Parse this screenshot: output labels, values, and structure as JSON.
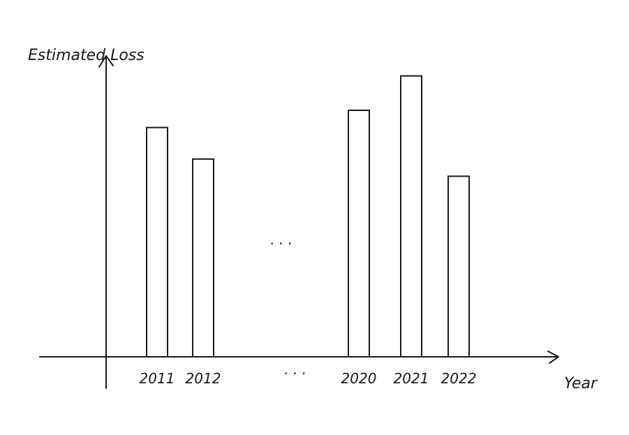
{
  "chart_data": {
    "type": "bar",
    "title": "",
    "ylabel": "Estimated Loss",
    "xlabel": "Year",
    "categories": [
      "2011",
      "2012",
      "2020",
      "2021",
      "2022"
    ],
    "values": [
      0.8,
      0.69,
      0.86,
      0.98,
      0.63
    ],
    "ylim": [
      0,
      1.05
    ],
    "gap_marker": "· · ·",
    "grid": false,
    "legend": "none",
    "colors": {
      "ink": "#1a1a1a",
      "bar_fill": "#ffffff",
      "background": "#ffffff"
    }
  }
}
